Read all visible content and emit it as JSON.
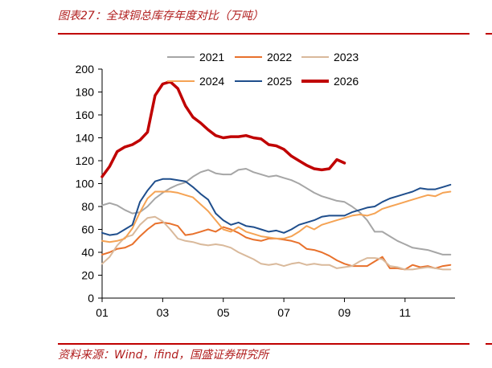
{
  "header": {
    "title": "图表27：全球铜总库存年度对比（万吨）"
  },
  "footer": {
    "source": "资料来源：Wind，ifind，国盛证券研究所"
  },
  "chart_data": {
    "type": "line",
    "title": "图表27：全球铜总库存年度对比（万吨）",
    "xlabel": "",
    "ylabel": "",
    "x_ticks": [
      "01",
      "03",
      "05",
      "07",
      "09",
      "11"
    ],
    "x_tick_positions": [
      1,
      3,
      5,
      7,
      9,
      11
    ],
    "xlim": [
      1,
      12.65
    ],
    "ylim": [
      0,
      200
    ],
    "y_ticks": [
      0,
      20,
      40,
      60,
      80,
      100,
      120,
      140,
      160,
      180,
      200
    ],
    "grid": false,
    "legend_position": "top",
    "series": [
      {
        "name": "2021",
        "color": "#a6a6a6",
        "x": [
          1,
          1.25,
          1.5,
          1.75,
          2,
          2.25,
          2.5,
          2.75,
          3,
          3.25,
          3.5,
          3.75,
          4,
          4.25,
          4.5,
          4.75,
          5,
          5.25,
          5.5,
          5.75,
          6,
          6.25,
          6.5,
          6.75,
          7,
          7.25,
          7.5,
          7.75,
          8,
          8.25,
          8.5,
          8.75,
          9,
          9.25,
          9.5,
          9.75,
          10,
          10.25,
          10.5,
          10.75,
          11,
          11.25,
          11.5,
          11.75,
          12,
          12.25,
          12.5
        ],
        "y": [
          81,
          83,
          81,
          77,
          74,
          75,
          80,
          87,
          92,
          96,
          99,
          101,
          106,
          110,
          112,
          109,
          108,
          108,
          112,
          113,
          110,
          108,
          106,
          107,
          105,
          103,
          100,
          96,
          92,
          89,
          87,
          85,
          84,
          80,
          75,
          68,
          58,
          58,
          54,
          50,
          47,
          44,
          43,
          42,
          40,
          38,
          38
        ]
      },
      {
        "name": "2022",
        "color": "#e8712c",
        "x": [
          1,
          1.25,
          1.5,
          1.75,
          2,
          2.25,
          2.5,
          2.75,
          3,
          3.25,
          3.5,
          3.75,
          4,
          4.25,
          4.5,
          4.75,
          5,
          5.25,
          5.5,
          5.75,
          6,
          6.25,
          6.5,
          6.75,
          7,
          7.25,
          7.5,
          7.75,
          8,
          8.25,
          8.5,
          8.75,
          9,
          9.25,
          9.5,
          9.75,
          10,
          10.25,
          10.5,
          10.75,
          11,
          11.25,
          11.5,
          11.75,
          12,
          12.25,
          12.5
        ],
        "y": [
          38,
          40,
          43,
          44,
          47,
          54,
          60,
          65,
          66,
          65,
          63,
          55,
          56,
          58,
          60,
          58,
          62,
          60,
          57,
          53,
          51,
          50,
          52,
          52,
          51,
          50,
          48,
          43,
          42,
          40,
          37,
          33,
          30,
          28,
          28,
          28,
          32,
          36,
          26,
          26,
          25,
          29,
          27,
          28,
          26,
          28,
          29
        ]
      },
      {
        "name": "2023",
        "color": "#d9b99b",
        "x": [
          1,
          1.25,
          1.5,
          1.75,
          2,
          2.25,
          2.5,
          2.75,
          3,
          3.25,
          3.5,
          3.75,
          4,
          4.25,
          4.5,
          4.75,
          5,
          5.25,
          5.5,
          5.75,
          6,
          6.25,
          6.5,
          6.75,
          7,
          7.25,
          7.5,
          7.75,
          8,
          8.25,
          8.5,
          8.75,
          9,
          9.25,
          9.5,
          9.75,
          10,
          10.25,
          10.5,
          10.75,
          11,
          11.25,
          11.5,
          11.75,
          12,
          12.25,
          12.5
        ],
        "y": [
          30,
          36,
          46,
          53,
          55,
          64,
          70,
          71,
          67,
          60,
          52,
          50,
          49,
          47,
          46,
          47,
          46,
          44,
          40,
          37,
          34,
          30,
          29,
          30,
          28,
          30,
          31,
          29,
          30,
          29,
          29,
          26,
          27,
          28,
          32,
          35,
          35,
          34,
          28,
          27,
          25,
          25,
          26,
          27,
          26,
          25,
          25
        ]
      },
      {
        "name": "2024",
        "color": "#f5a354",
        "x": [
          1,
          1.25,
          1.5,
          1.75,
          2,
          2.25,
          2.5,
          2.75,
          3,
          3.25,
          3.5,
          3.75,
          4,
          4.25,
          4.5,
          4.75,
          5,
          5.25,
          5.5,
          5.75,
          6,
          6.25,
          6.5,
          6.75,
          7,
          7.25,
          7.5,
          7.75,
          8,
          8.25,
          8.5,
          8.75,
          9,
          9.25,
          9.5,
          9.75,
          10,
          10.25,
          10.5,
          10.75,
          11,
          11.25,
          11.5,
          11.75,
          12,
          12.25,
          12.5
        ],
        "y": [
          50,
          49,
          50,
          52,
          61,
          75,
          87,
          93,
          93,
          93,
          92,
          90,
          88,
          82,
          76,
          68,
          60,
          58,
          62,
          58,
          56,
          54,
          53,
          52,
          52,
          54,
          58,
          63,
          60,
          64,
          66,
          68,
          70,
          72,
          73,
          72,
          74,
          78,
          80,
          82,
          84,
          86,
          88,
          90,
          89,
          92,
          93
        ]
      },
      {
        "name": "2025",
        "color": "#1f4e8c",
        "x": [
          1,
          1.25,
          1.5,
          1.75,
          2,
          2.25,
          2.5,
          2.75,
          3,
          3.25,
          3.5,
          3.75,
          4,
          4.25,
          4.5,
          4.75,
          5,
          5.25,
          5.5,
          5.75,
          6,
          6.25,
          6.5,
          6.75,
          7,
          7.25,
          7.5,
          7.75,
          8,
          8.25,
          8.5,
          8.75,
          9,
          9.25,
          9.5,
          9.75,
          10,
          10.25,
          10.5,
          10.75,
          11,
          11.25,
          11.5,
          11.75,
          12,
          12.25,
          12.5
        ],
        "y": [
          57,
          55,
          56,
          60,
          64,
          84,
          94,
          102,
          104,
          104,
          103,
          102,
          97,
          91,
          86,
          74,
          68,
          64,
          66,
          63,
          62,
          60,
          58,
          59,
          57,
          60,
          64,
          66,
          68,
          71,
          72,
          72,
          72,
          75,
          77,
          79,
          80,
          84,
          87,
          89,
          91,
          93,
          96,
          95,
          95,
          97,
          99
        ]
      },
      {
        "name": "2026",
        "color": "#c00000",
        "x": [
          1,
          1.25,
          1.5,
          1.75,
          2,
          2.25,
          2.5,
          2.75,
          3,
          3.25,
          3.5,
          3.75,
          4,
          4.25,
          4.5,
          4.75,
          5,
          5.25,
          5.5,
          5.75,
          6,
          6.25,
          6.5,
          6.75,
          7,
          7.25,
          7.5,
          7.75,
          8,
          8.25,
          8.5,
          8.75,
          9
        ],
        "y": [
          106,
          115,
          128,
          132,
          134,
          138,
          145,
          177,
          187,
          189,
          183,
          168,
          158,
          153,
          147,
          142,
          140,
          141,
          141,
          142,
          140,
          139,
          134,
          133,
          130,
          124,
          120,
          116,
          113,
          112,
          113,
          121,
          118
        ]
      }
    ]
  }
}
